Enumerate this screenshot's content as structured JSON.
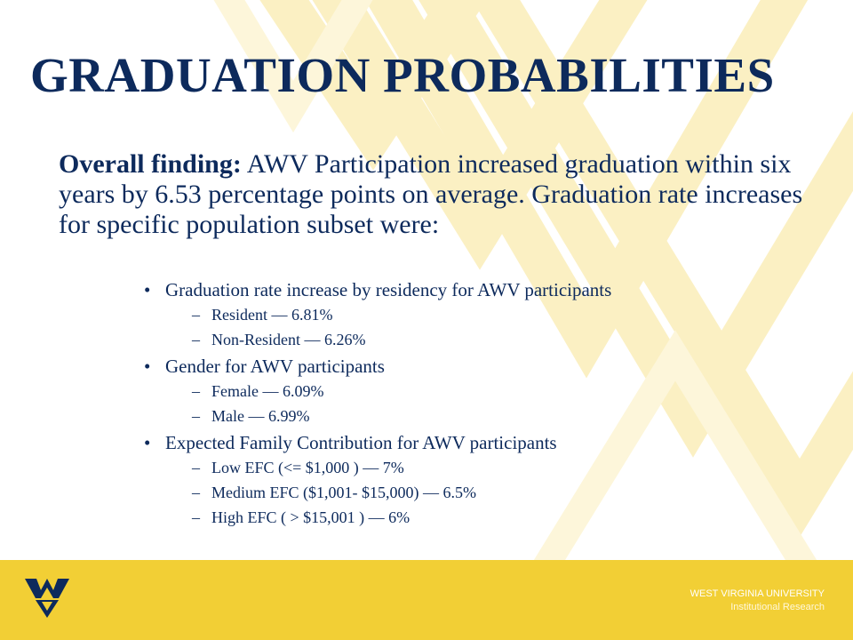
{
  "slide": {
    "title": "GRADUATION PROBABILITIES",
    "intro_label": "Overall finding:",
    "intro_text": " AWV Participation increased graduation within six years by 6.53 percentage points on average. Graduation rate increases for specific population subset were:"
  },
  "sections": [
    {
      "heading": "Graduation rate increase by residency for AWV participants",
      "items": [
        "Resident — 6.81%",
        "Non-Resident — 6.26%"
      ]
    },
    {
      "heading": "Gender for AWV participants",
      "items": [
        "Female — 6.09%",
        "Male — 6.99%"
      ]
    },
    {
      "heading": "Expected Family Contribution for AWV participants",
      "items": [
        "Low EFC (<= $1,000 ) — 7%",
        "Medium EFC ($1,001- $15,000) — 6.5%",
        "High EFC ( > $15,001 ) —  6%"
      ]
    }
  ],
  "footer": {
    "logo_text": "WV",
    "org_line1": "WEST VIRGINIA UNIVERSITY",
    "org_line2": "Institutional Research"
  },
  "colors": {
    "title_navy": "#0d2a5c",
    "text_navy": "#0d2a5c",
    "gold": "#f2cf35",
    "pale_gold": "#fbf0c3"
  },
  "icons": {
    "bullet": "bullet-dot-icon",
    "dash": "dash-icon",
    "logo": "wv-logo-icon"
  }
}
